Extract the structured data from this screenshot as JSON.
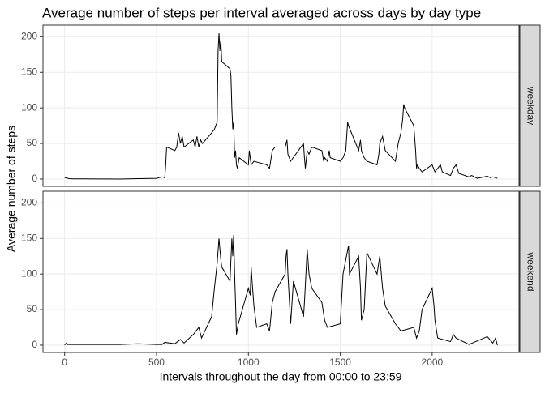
{
  "chart_data": {
    "type": "line",
    "title": "Average number of steps per interval averaged across days by day type",
    "xlabel": "Intervals throughout the day from 00:00 to 23:59",
    "ylabel": "Average number of steps",
    "xlim": [
      -117.75,
      2472.75
    ],
    "xticks": [
      0,
      500,
      1000,
      1500,
      2000
    ],
    "ylim": [
      -10.3,
      216.4
    ],
    "yticks": [
      0,
      50,
      100,
      150,
      200
    ],
    "grid": true,
    "color": "#000000",
    "series": [
      {
        "name": "weekday",
        "x": [
          0,
          25,
          50,
          100,
          200,
          300,
          400,
          500,
          515,
          530,
          545,
          550,
          555,
          600,
          610,
          620,
          630,
          640,
          650,
          700,
          710,
          720,
          730,
          740,
          750,
          800,
          815,
          830,
          835,
          840,
          845,
          850,
          855,
          900,
          905,
          910,
          915,
          920,
          925,
          930,
          935,
          940,
          950,
          1000,
          1005,
          1010,
          1015,
          1030,
          1100,
          1115,
          1130,
          1145,
          1200,
          1210,
          1215,
          1230,
          1300,
          1305,
          1310,
          1320,
          1330,
          1345,
          1400,
          1410,
          1415,
          1430,
          1440,
          1445,
          1500,
          1515,
          1530,
          1540,
          1545,
          1600,
          1610,
          1615,
          1630,
          1645,
          1700,
          1710,
          1715,
          1730,
          1745,
          1800,
          1815,
          1830,
          1840,
          1845,
          1850,
          1900,
          1910,
          1915,
          1920,
          1930,
          1945,
          2000,
          2015,
          2030,
          2045,
          2055,
          2100,
          2115,
          2130,
          2145,
          2200,
          2215,
          2230,
          2245,
          2300,
          2315,
          2330,
          2355
        ],
        "values": [
          2,
          0.5,
          0.2,
          0.3,
          0.1,
          0,
          0.5,
          1,
          2,
          3,
          2,
          20,
          45,
          40,
          45,
          65,
          50,
          60,
          45,
          55,
          45,
          60,
          45,
          55,
          50,
          65,
          70,
          80,
          180,
          205,
          180,
          195,
          165,
          155,
          145,
          100,
          70,
          80,
          30,
          40,
          20,
          15,
          30,
          20,
          40,
          30,
          20,
          25,
          20,
          15,
          40,
          45,
          45,
          55,
          35,
          25,
          50,
          30,
          15,
          40,
          35,
          45,
          40,
          25,
          30,
          25,
          40,
          30,
          25,
          30,
          40,
          80,
          75,
          40,
          55,
          40,
          30,
          25,
          20,
          35,
          50,
          60,
          40,
          25,
          50,
          65,
          85,
          105,
          100,
          75,
          40,
          15,
          20,
          15,
          10,
          20,
          10,
          15,
          20,
          10,
          5,
          15,
          20,
          8,
          3,
          5,
          3,
          1,
          4,
          2,
          3,
          1
        ]
      },
      {
        "name": "weekend",
        "x": [
          0,
          10,
          15,
          100,
          200,
          300,
          400,
          500,
          530,
          545,
          600,
          630,
          650,
          700,
          715,
          730,
          745,
          800,
          815,
          830,
          840,
          850,
          855,
          900,
          910,
          915,
          920,
          925,
          930,
          935,
          945,
          1000,
          1010,
          1015,
          1020,
          1030,
          1045,
          1100,
          1115,
          1130,
          1145,
          1200,
          1205,
          1210,
          1215,
          1230,
          1245,
          1300,
          1305,
          1320,
          1330,
          1345,
          1400,
          1415,
          1430,
          1500,
          1515,
          1530,
          1545,
          1550,
          1600,
          1610,
          1615,
          1630,
          1645,
          1700,
          1715,
          1730,
          1745,
          1800,
          1830,
          1900,
          1915,
          1930,
          1945,
          2000,
          2010,
          2015,
          2030,
          2100,
          2115,
          2130,
          2200,
          2300,
          2330,
          2345,
          2355
        ],
        "values": [
          0,
          3,
          1,
          1,
          1,
          1,
          2,
          1,
          1,
          4,
          2,
          8,
          3,
          15,
          20,
          25,
          10,
          40,
          80,
          115,
          150,
          120,
          110,
          90,
          150,
          125,
          155,
          100,
          60,
          15,
          30,
          80,
          70,
          110,
          90,
          55,
          25,
          30,
          20,
          60,
          75,
          100,
          125,
          135,
          100,
          30,
          90,
          40,
          60,
          135,
          100,
          80,
          60,
          35,
          25,
          30,
          100,
          120,
          140,
          100,
          125,
          80,
          35,
          50,
          130,
          100,
          125,
          80,
          55,
          30,
          20,
          25,
          10,
          20,
          50,
          80,
          55,
          35,
          10,
          5,
          15,
          10,
          1,
          12,
          3,
          10,
          0
        ]
      }
    ]
  }
}
